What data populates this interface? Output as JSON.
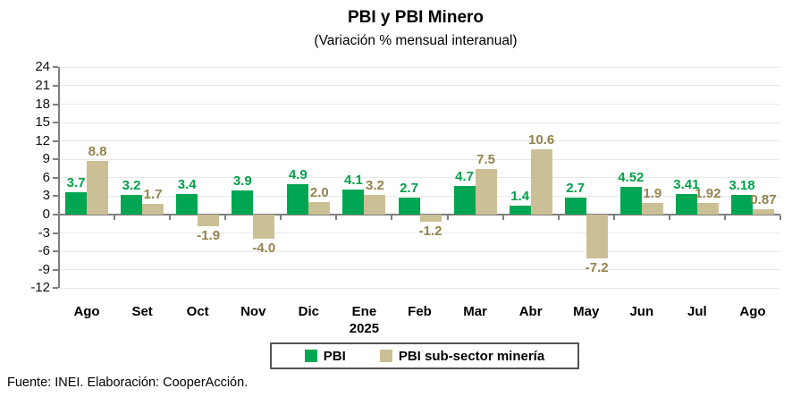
{
  "source_note": "Fuente: INEI. Elaboración: CooperAcción.",
  "chart_data": {
    "type": "bar",
    "title": "PBI y PBI Minero",
    "subtitle": "(Variación % mensual interanual)",
    "categories": [
      "Ago",
      "Set",
      "Oct",
      "Nov",
      "Dic",
      "Ene",
      "Feb",
      "Mar",
      "Abr",
      "May",
      "Jun",
      "Jul",
      "Ago"
    ],
    "year_label": "2025",
    "year_label_index": 5,
    "series": [
      {
        "name": "PBI",
        "color": "#00A651",
        "label_color": "#00A14A",
        "values": [
          3.7,
          3.2,
          3.4,
          3.9,
          4.9,
          4.1,
          2.7,
          4.7,
          1.4,
          2.7,
          4.52,
          3.41,
          3.18
        ],
        "labels": [
          "3.7",
          "3.2",
          "3.4",
          "3.9",
          "4.9",
          "4.1",
          "2.7",
          "4.7",
          "1.4",
          "2.7",
          "4.52",
          "3.41",
          "3.18"
        ]
      },
      {
        "name": "PBI sub-sector minería",
        "color": "#CBC095",
        "label_color": "#93834C",
        "values": [
          8.8,
          1.7,
          -1.9,
          -4.0,
          2.0,
          3.2,
          -1.2,
          7.5,
          10.6,
          -7.2,
          1.9,
          1.92,
          0.87
        ],
        "labels": [
          "8.8",
          "1.7",
          "-1.9",
          "-4.0",
          "2.0",
          "3.2",
          "-1.2",
          "7.5",
          "10.6",
          "-7.2",
          "1.9",
          "1.92",
          "0.87"
        ]
      }
    ],
    "ylim": [
      -12,
      24
    ],
    "yticks": [
      24,
      21,
      18,
      15,
      12,
      9,
      6,
      3,
      0,
      -3,
      -6,
      -9,
      -12
    ],
    "grid": true,
    "legend_position": "bottom",
    "axis_color": "#7f7f7f",
    "gridline_color": "#e9e9e9"
  }
}
